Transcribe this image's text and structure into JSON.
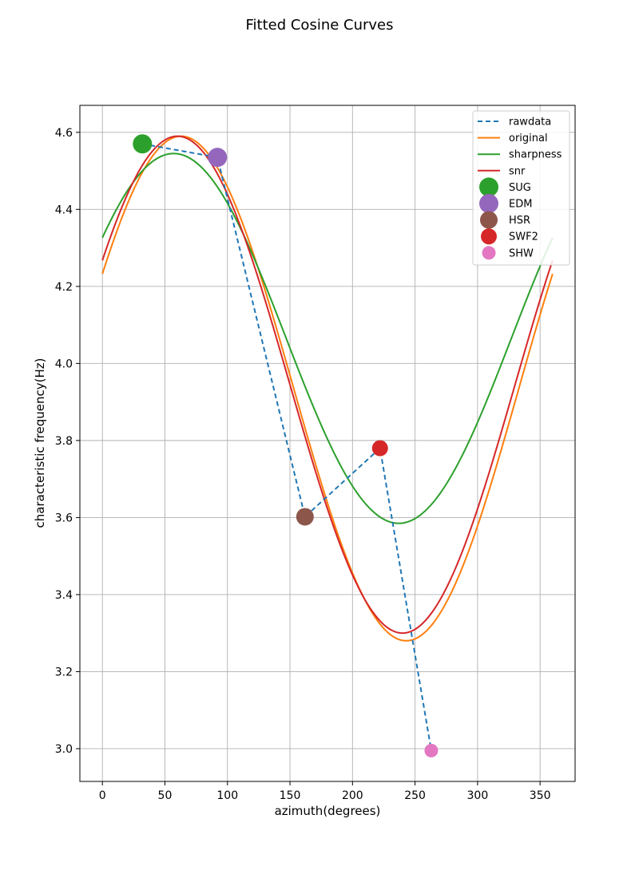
{
  "chart_data": {
    "type": "line",
    "title": "Fitted Cosine Curves",
    "xlabel": "azimuth(degrees)",
    "ylabel": "characteristic frequency(Hz)",
    "xlim": [
      -18,
      378
    ],
    "ylim": [
      2.915,
      4.67
    ],
    "xticks": [
      0,
      50,
      100,
      150,
      200,
      250,
      300,
      350
    ],
    "yticks": [
      3.0,
      3.2,
      3.4,
      3.6,
      3.8,
      4.0,
      4.2,
      4.4,
      4.6
    ],
    "grid": true,
    "legend_position": "top-right",
    "raw_series": {
      "name": "rawdata",
      "color": "#1f77b4",
      "style": "dashed",
      "x": [
        32,
        92,
        162,
        222,
        263
      ],
      "y": [
        4.57,
        4.535,
        3.602,
        3.78,
        2.995
      ]
    },
    "fitted_series": [
      {
        "name": "original",
        "color": "#ff7f0e",
        "mean": 3.935,
        "amplitude": 0.655,
        "phase_deg": 63
      },
      {
        "name": "sharpness",
        "color": "#2ca02c",
        "mean": 4.065,
        "amplitude": 0.48,
        "phase_deg": 57
      },
      {
        "name": "snr",
        "color": "#d62728",
        "mean": 3.945,
        "amplitude": 0.645,
        "phase_deg": 60
      }
    ],
    "stations": [
      {
        "name": "SUG",
        "color": "#2ca02c",
        "x": 32,
        "y": 4.57,
        "size": "large"
      },
      {
        "name": "EDM",
        "color": "#9467bd",
        "x": 92,
        "y": 4.535,
        "size": "large"
      },
      {
        "name": "HSR",
        "color": "#8c564b",
        "x": 162,
        "y": 3.602,
        "size": "medium"
      },
      {
        "name": "SWF2",
        "color": "#d62728",
        "x": 222,
        "y": 3.78,
        "size": "small"
      },
      {
        "name": "SHW",
        "color": "#e377c2",
        "x": 263,
        "y": 2.995,
        "size": "tiny"
      }
    ]
  }
}
